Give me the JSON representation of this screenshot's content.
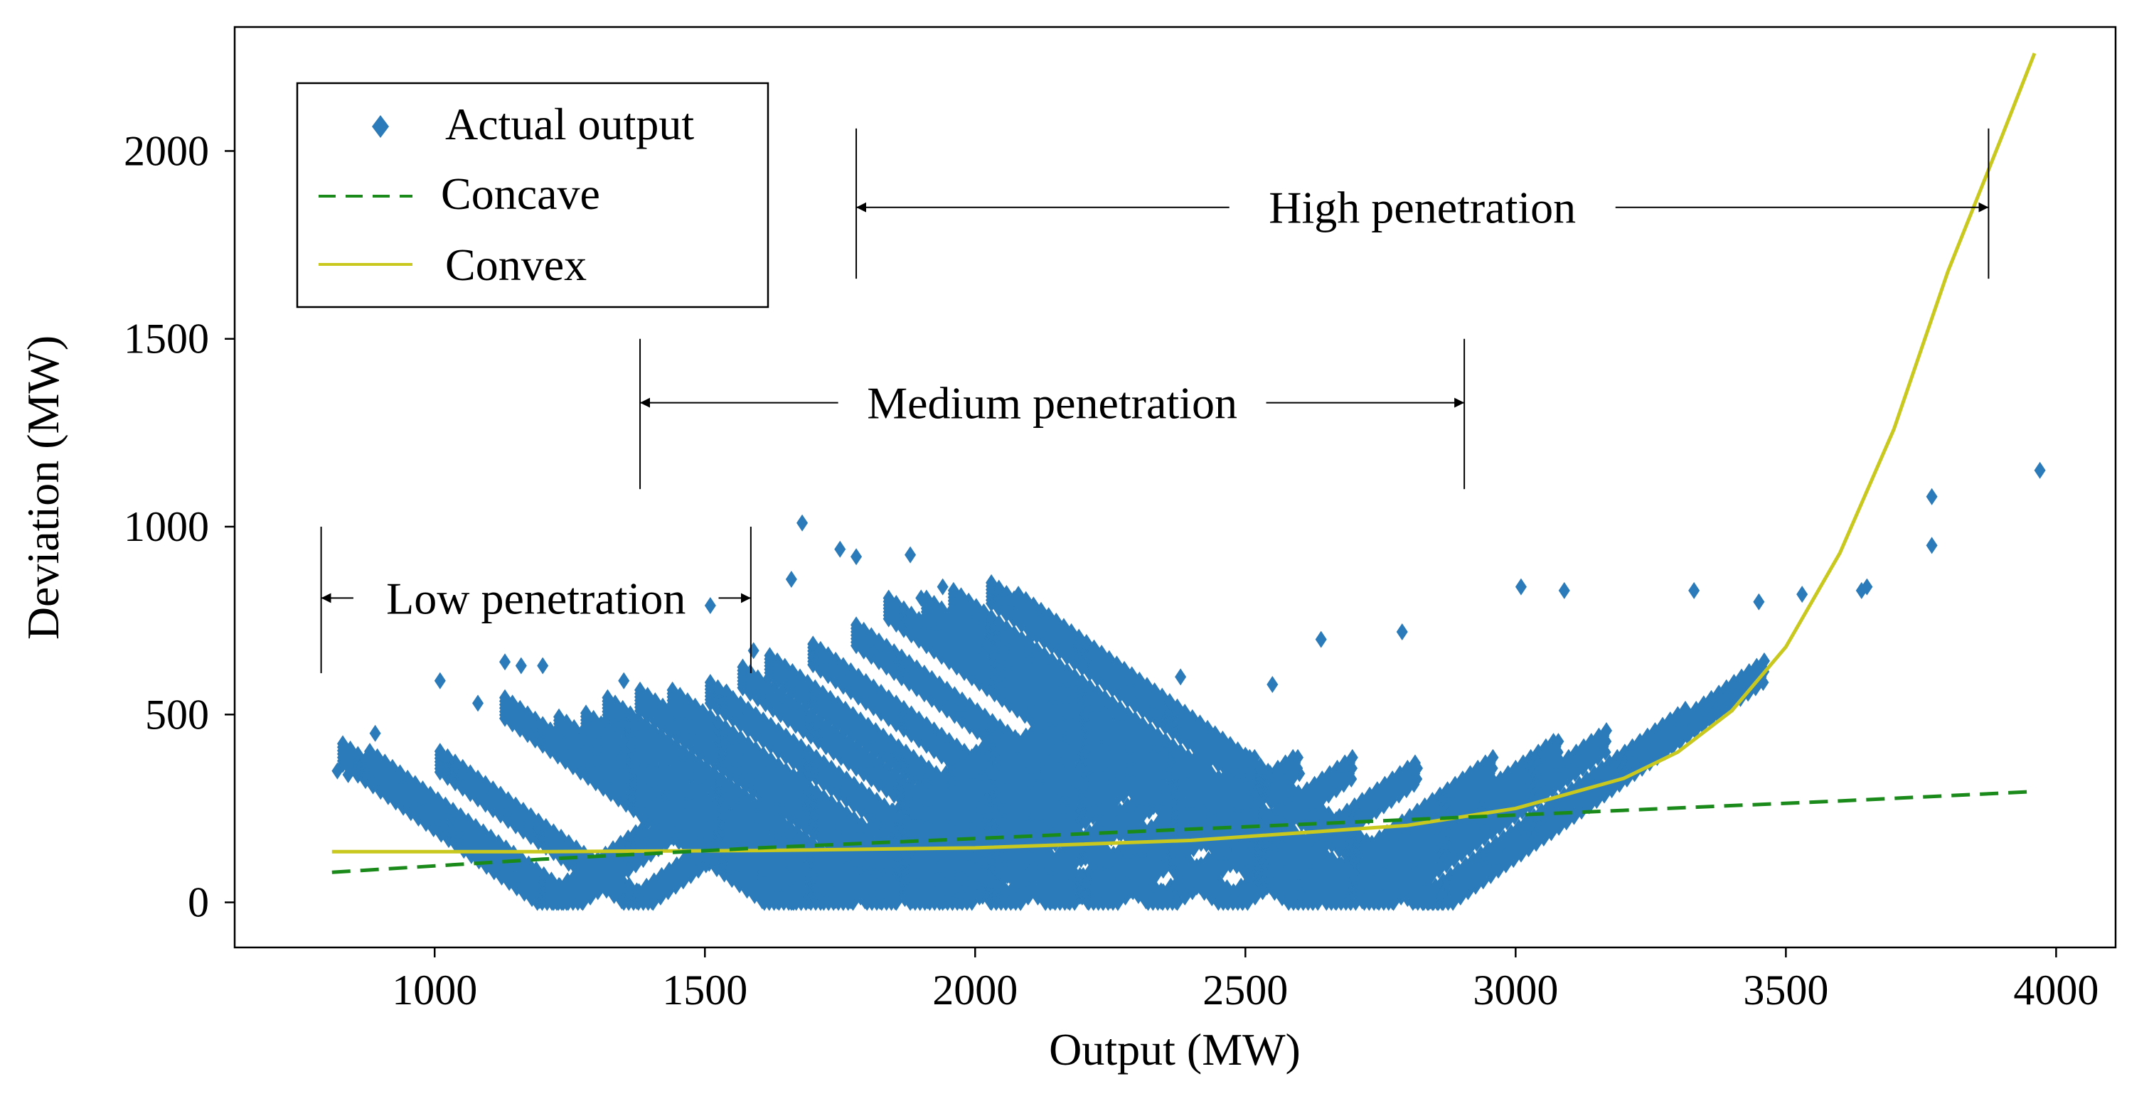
{
  "chart_data": {
    "type": "scatter",
    "title": "",
    "xlabel": "Output (MW)",
    "ylabel": "Deviation (MW)",
    "xlim": [
      630,
      4110
    ],
    "ylim": [
      -120,
      2330
    ],
    "xticks": [
      1000,
      1500,
      2000,
      2500,
      3000,
      3500,
      4000
    ],
    "yticks": [
      0,
      500,
      1000,
      1500,
      2000
    ],
    "grid": false,
    "legend_position": "top-left",
    "colors": {
      "scatter": "#2b7bba",
      "concave": "#1a8a1a",
      "convex": "#c8c81e"
    },
    "legend": [
      {
        "key": "scatter",
        "label": "Actual output"
      },
      {
        "key": "concave",
        "label": "Concave"
      },
      {
        "key": "convex",
        "label": "Convex"
      }
    ],
    "series": [
      {
        "name": "Actual output",
        "kind": "scatter",
        "description_points": "V-shaped clusters of diamonds; vertices at zero deviation",
        "v_clusters": [
          {
            "vertex": 1190,
            "left": 830,
            "right": 1390
          },
          {
            "vertex": 1220,
            "left": 880,
            "right": 1480
          },
          {
            "vertex": 1350,
            "left": 1010,
            "right": 1690
          },
          {
            "vertex": 1610,
            "left": 1130,
            "right": 2050
          },
          {
            "vertex": 1660,
            "left": 1230,
            "right": 2130
          },
          {
            "vertex": 1720,
            "left": 1280,
            "right": 2180
          },
          {
            "vertex": 1800,
            "left": 1320,
            "right": 2250
          },
          {
            "vertex": 1880,
            "left": 1380,
            "right": 2300
          },
          {
            "vertex": 1940,
            "left": 1440,
            "right": 2350
          },
          {
            "vertex": 2030,
            "left": 1510,
            "right": 2430
          },
          {
            "vertex": 2130,
            "left": 1570,
            "right": 2520
          },
          {
            "vertex": 2210,
            "left": 1620,
            "right": 2600
          },
          {
            "vertex": 2320,
            "left": 1700,
            "right": 2700
          },
          {
            "vertex": 2450,
            "left": 1780,
            "right": 2820
          },
          {
            "vertex": 2580,
            "left": 1840,
            "right": 2960
          },
          {
            "vertex": 2650,
            "left": 1910,
            "right": 3080
          },
          {
            "vertex": 2720,
            "left": 1960,
            "right": 3170
          },
          {
            "vertex": 2810,
            "left": 2030,
            "right": 3320
          },
          {
            "vertex": 2830,
            "left": 2080,
            "right": 3460
          }
        ],
        "outliers": [
          [
            820,
            350
          ],
          [
            840,
            340
          ],
          [
            890,
            450
          ],
          [
            1010,
            590
          ],
          [
            1080,
            530
          ],
          [
            1130,
            640
          ],
          [
            1160,
            630
          ],
          [
            1200,
            630
          ],
          [
            1350,
            590
          ],
          [
            1510,
            790
          ],
          [
            1540,
            560
          ],
          [
            1590,
            670
          ],
          [
            1660,
            860
          ],
          [
            1680,
            1010
          ],
          [
            1750,
            940
          ],
          [
            1780,
            920
          ],
          [
            1880,
            925
          ],
          [
            1900,
            810
          ],
          [
            1940,
            840
          ],
          [
            2100,
            700
          ],
          [
            2200,
            630
          ],
          [
            2380,
            600
          ],
          [
            2550,
            580
          ],
          [
            2640,
            700
          ],
          [
            2790,
            720
          ],
          [
            3010,
            840
          ],
          [
            3090,
            830
          ],
          [
            3330,
            830
          ],
          [
            3450,
            800
          ],
          [
            3530,
            820
          ],
          [
            3640,
            830
          ],
          [
            3650,
            840
          ],
          [
            3770,
            950
          ],
          [
            3770,
            1080
          ],
          [
            3970,
            1150
          ]
        ]
      },
      {
        "name": "Concave",
        "kind": "line",
        "style": "dashed",
        "x": [
          810,
          1200,
          1600,
          2000,
          2400,
          2800,
          3200,
          3600,
          3960
        ],
        "y": [
          80,
          115,
          145,
          170,
          195,
          220,
          245,
          270,
          295
        ]
      },
      {
        "name": "Convex",
        "kind": "line",
        "style": "solid",
        "x": [
          810,
          1200,
          1600,
          2000,
          2400,
          2800,
          3000,
          3200,
          3300,
          3400,
          3500,
          3600,
          3700,
          3800,
          3900,
          3960
        ],
        "y": [
          135,
          135,
          138,
          145,
          165,
          205,
          250,
          330,
          400,
          510,
          680,
          930,
          1260,
          1680,
          2040,
          2260
        ]
      }
    ],
    "annotations": [
      {
        "label": "High penetration",
        "x_start": 1780,
        "x_end": 3875,
        "y": 1850,
        "bar_top": 2060,
        "bar_bottom": 1660
      },
      {
        "label": "Medium penetration",
        "x_start": 1380,
        "x_end": 2905,
        "y": 1330,
        "bar_top": 1500,
        "bar_bottom": 1100
      },
      {
        "label": "Low penetration",
        "x_start": 790,
        "x_end": 1585,
        "y": 810,
        "bar_top": 1000,
        "bar_bottom": 610
      }
    ]
  }
}
